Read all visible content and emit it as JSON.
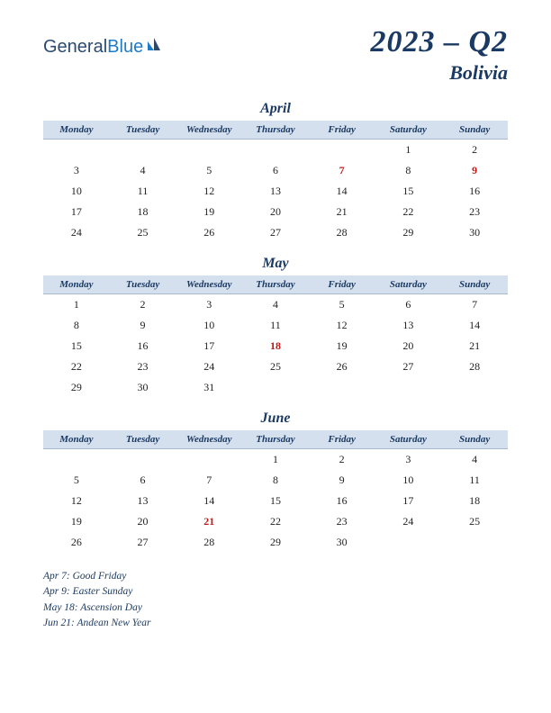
{
  "logo": {
    "part1": "General",
    "part2": "Blue"
  },
  "title": {
    "period": "2023 – Q2",
    "country": "Bolivia"
  },
  "colors": {
    "heading": "#1b3a63",
    "header_bg": "#d5e0ef",
    "holiday": "#c41818",
    "logo1": "#2b4a6f",
    "logo2": "#1e7bc8",
    "background": "#ffffff"
  },
  "day_headers": [
    "Monday",
    "Tuesday",
    "Wednesday",
    "Thursday",
    "Friday",
    "Saturday",
    "Sunday"
  ],
  "months": [
    {
      "name": "April",
      "weeks": [
        [
          "",
          "",
          "",
          "",
          "",
          "1",
          "2"
        ],
        [
          "3",
          "4",
          "5",
          "6",
          "7",
          "8",
          "9"
        ],
        [
          "10",
          "11",
          "12",
          "13",
          "14",
          "15",
          "16"
        ],
        [
          "17",
          "18",
          "19",
          "20",
          "21",
          "22",
          "23"
        ],
        [
          "24",
          "25",
          "26",
          "27",
          "28",
          "29",
          "30"
        ]
      ],
      "holidays": [
        "7",
        "9"
      ]
    },
    {
      "name": "May",
      "weeks": [
        [
          "1",
          "2",
          "3",
          "4",
          "5",
          "6",
          "7"
        ],
        [
          "8",
          "9",
          "10",
          "11",
          "12",
          "13",
          "14"
        ],
        [
          "15",
          "16",
          "17",
          "18",
          "19",
          "20",
          "21"
        ],
        [
          "22",
          "23",
          "24",
          "25",
          "26",
          "27",
          "28"
        ],
        [
          "29",
          "30",
          "31",
          "",
          "",
          "",
          ""
        ]
      ],
      "holidays": [
        "18"
      ]
    },
    {
      "name": "June",
      "weeks": [
        [
          "",
          "",
          "",
          "1",
          "2",
          "3",
          "4"
        ],
        [
          "5",
          "6",
          "7",
          "8",
          "9",
          "10",
          "11"
        ],
        [
          "12",
          "13",
          "14",
          "15",
          "16",
          "17",
          "18"
        ],
        [
          "19",
          "20",
          "21",
          "22",
          "23",
          "24",
          "25"
        ],
        [
          "26",
          "27",
          "28",
          "29",
          "30",
          "",
          ""
        ]
      ],
      "holidays": [
        "21"
      ]
    }
  ],
  "holiday_list": [
    "Apr 7: Good Friday",
    "Apr 9: Easter Sunday",
    "May 18: Ascension Day",
    "Jun 21: Andean New Year"
  ]
}
